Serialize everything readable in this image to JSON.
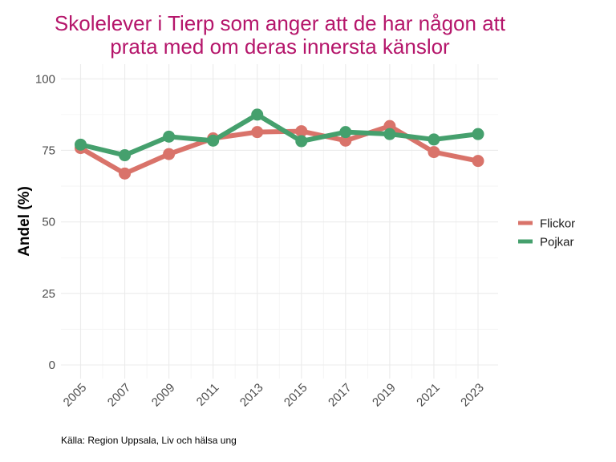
{
  "chart_data": {
    "type": "line",
    "title_lines": [
      "Skolelever i Tierp som anger att de har någon att",
      "prata med om deras innersta känslor"
    ],
    "xlabel": "",
    "ylabel": "Andel (%)",
    "x": [
      2005,
      2007,
      2009,
      2011,
      2013,
      2015,
      2017,
      2019,
      2021,
      2023
    ],
    "x_tick_labels": [
      "2005",
      "2007",
      "2009",
      "2011",
      "2013",
      "2015",
      "2017",
      "2019",
      "2021",
      "2023"
    ],
    "y_ticks": [
      0,
      25,
      50,
      75,
      100
    ],
    "y_tick_labels": [
      "0",
      "25",
      "50",
      "75",
      "100"
    ],
    "ylim": [
      0,
      100
    ],
    "grid": true,
    "legend_position": "right",
    "series": [
      {
        "name": "Flickor",
        "color": "#D9736A",
        "values": [
          75.8,
          66.9,
          73.7,
          79.2,
          81.4,
          81.7,
          78.4,
          83.5,
          74.4,
          71.3
        ]
      },
      {
        "name": "Pojkar",
        "color": "#45A06D",
        "values": [
          77.0,
          73.3,
          79.8,
          78.4,
          87.5,
          78.2,
          81.4,
          80.7,
          78.8,
          80.7
        ]
      }
    ],
    "caption": "Källa: Region Uppsala, Liv och hälsa ung",
    "title_color": "#B5166B"
  }
}
